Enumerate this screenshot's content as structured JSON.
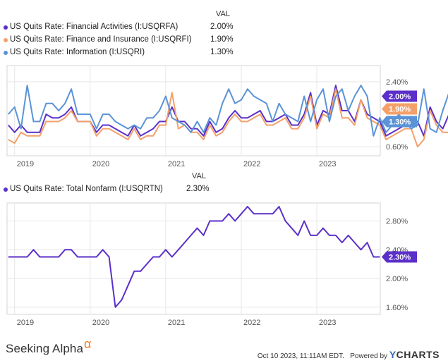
{
  "chart_data": [
    {
      "type": "line",
      "legend_header": "VAL",
      "x_ticks": [
        "2019",
        "2020",
        "2021",
        "2022",
        "2023"
      ],
      "y_ticks": [
        "2.40%",
        "0.60%"
      ],
      "y_tick_values": [
        2.4,
        0.6
      ],
      "ylim": [
        0.35,
        2.85
      ],
      "xlim": [
        2018.9,
        2023.84
      ],
      "series": [
        {
          "name": "US Quits Rate: Financial Activities (I:USQRFA)",
          "value_label": "2.00%",
          "color": "#5b2fc9",
          "x_start": 2018.917,
          "values": [
            1.2,
            1.0,
            1.2,
            1.0,
            1.0,
            1.0,
            1.5,
            1.4,
            1.4,
            1.5,
            1.7,
            1.3,
            1.3,
            1.3,
            1.0,
            1.2,
            1.2,
            1.1,
            1.0,
            0.9,
            1.2,
            0.9,
            1.0,
            1.1,
            1.3,
            1.3,
            1.7,
            1.3,
            1.3,
            1.1,
            1.1,
            0.9,
            1.3,
            1.0,
            1.1,
            1.4,
            1.6,
            1.4,
            1.4,
            1.5,
            1.6,
            1.3,
            1.3,
            1.4,
            1.5,
            1.2,
            1.2,
            1.5,
            2.1,
            1.2,
            1.6,
            1.5,
            2.3,
            1.6,
            1.6,
            1.3,
            1.9,
            1.5,
            1.4,
            1.3,
            0.9,
            1.0,
            1.1,
            1.2,
            1.3,
            1.3,
            0.9,
            1.7,
            1.3,
            1.1,
            1.5,
            1.3,
            1.2,
            2.0
          ]
        },
        {
          "name": "US Quits Rate: Finance and Insurance (I:USQRFI)",
          "value_label": "1.90%",
          "color": "#f3a06a",
          "x_start": 2018.917,
          "values": [
            0.8,
            0.7,
            1.0,
            0.9,
            0.9,
            0.9,
            1.3,
            1.3,
            1.3,
            1.4,
            1.6,
            1.3,
            1.3,
            1.3,
            0.9,
            1.1,
            1.1,
            1.0,
            0.9,
            0.8,
            1.1,
            0.8,
            0.9,
            0.9,
            1.2,
            1.2,
            2.1,
            1.1,
            1.2,
            1.0,
            1.0,
            0.8,
            1.2,
            0.9,
            1.0,
            1.3,
            1.5,
            1.3,
            1.3,
            1.4,
            1.5,
            1.2,
            1.2,
            1.3,
            1.4,
            1.1,
            1.1,
            1.4,
            2.0,
            1.1,
            1.5,
            1.4,
            2.2,
            1.4,
            1.4,
            1.2,
            1.9,
            1.4,
            1.3,
            1.2,
            0.8,
            0.9,
            1.0,
            1.1,
            1.1,
            0.6,
            0.8,
            1.6,
            1.2,
            1.0,
            1.0,
            1.0,
            0.9,
            1.9
          ]
        },
        {
          "name": "US Quits Rate: Information (I:USQRI)",
          "value_label": "1.30%",
          "color": "#5a93d6",
          "x_start": 2018.917,
          "values": [
            1.5,
            1.7,
            1.1,
            2.3,
            1.3,
            1.3,
            1.8,
            1.8,
            1.6,
            1.8,
            2.2,
            1.5,
            1.5,
            1.5,
            1.1,
            1.5,
            1.5,
            1.3,
            1.2,
            1.1,
            1.2,
            1.1,
            1.4,
            1.4,
            1.6,
            2.0,
            1.4,
            1.3,
            1.2,
            1.0,
            1.3,
            1.0,
            1.4,
            1.2,
            1.8,
            2.2,
            1.8,
            1.9,
            2.2,
            2.0,
            1.9,
            1.8,
            1.3,
            1.8,
            1.5,
            1.4,
            1.3,
            2.0,
            1.3,
            1.9,
            2.2,
            1.3,
            2.0,
            2.2,
            1.6,
            2.0,
            2.3,
            2.0,
            0.9,
            1.4,
            1.0,
            1.2,
            1.5,
            1.3,
            1.1,
            1.2,
            2.2,
            1.1,
            1.0,
            1.6,
            2.1,
            1.3,
            1.9,
            1.3
          ]
        }
      ]
    },
    {
      "type": "line",
      "legend_header": "VAL",
      "x_ticks": [
        "2019",
        "2020",
        "2021",
        "2022",
        "2023"
      ],
      "y_ticks": [
        "2.80%",
        "2.40%",
        "2.00%",
        "1.60%"
      ],
      "y_tick_values": [
        2.8,
        2.4,
        2.0,
        1.6
      ],
      "ylim": [
        1.5,
        3.05
      ],
      "xlim": [
        2018.9,
        2023.84
      ],
      "series": [
        {
          "name": "US Quits Rate: Total Nonfarm (I:USQRTN)",
          "value_label": "2.30%",
          "color": "#5b2fc9",
          "x_start": 2018.917,
          "values": [
            2.3,
            2.3,
            2.3,
            2.3,
            2.4,
            2.3,
            2.3,
            2.3,
            2.3,
            2.4,
            2.4,
            2.3,
            2.3,
            2.3,
            2.3,
            2.4,
            2.3,
            1.6,
            1.7,
            1.9,
            2.1,
            2.1,
            2.2,
            2.3,
            2.3,
            2.4,
            2.3,
            2.4,
            2.5,
            2.6,
            2.7,
            2.6,
            2.8,
            2.8,
            2.8,
            2.9,
            2.8,
            2.9,
            3.0,
            2.9,
            2.9,
            2.9,
            2.9,
            3.0,
            2.8,
            2.7,
            2.6,
            2.8,
            2.6,
            2.6,
            2.7,
            2.6,
            2.6,
            2.5,
            2.6,
            2.5,
            2.4,
            2.5,
            2.3,
            2.3
          ]
        }
      ]
    }
  ],
  "footer": {
    "brand": "Seeking Alpha",
    "brand_mark": "α",
    "timestamp": "Oct 10 2023, 11:11AM EDT.",
    "powered_by": "Powered by",
    "provider_y": "Y",
    "provider_rest": "CHARTS"
  }
}
